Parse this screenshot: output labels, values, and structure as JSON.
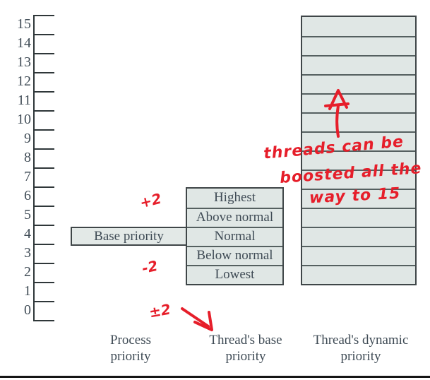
{
  "scale": {
    "values": [
      "15",
      "14",
      "13",
      "12",
      "11",
      "10",
      "9",
      "8",
      "7",
      "6",
      "5",
      "4",
      "3",
      "2",
      "1",
      "0"
    ]
  },
  "process_column": {
    "box_label": "Base priority",
    "caption_line1": "Process",
    "caption_line2": "priority"
  },
  "base_column": {
    "rows": [
      "Highest",
      "Above normal",
      "Normal",
      "Below normal",
      "Lowest"
    ],
    "caption_line1": "Thread's base",
    "caption_line2": "priority"
  },
  "dynamic_column": {
    "row_count": 14,
    "caption_line1": "Thread's dynamic",
    "caption_line2": "priority"
  },
  "annotations": {
    "plus2": "+2",
    "minus2": "-2",
    "plusminus2": "±2",
    "note_line1": "threads can be",
    "note_line2": "boosted all the",
    "note_line3": "way to 15",
    "up_arrow": "boost-up-arrow",
    "down_right_arrow": "note-arrow"
  },
  "colors": {
    "fill": "#e0e7e5",
    "outer_border": "#3f4648",
    "divider": "#556060",
    "text": "#3f4b55",
    "annotation_red": "#e61e2a"
  }
}
